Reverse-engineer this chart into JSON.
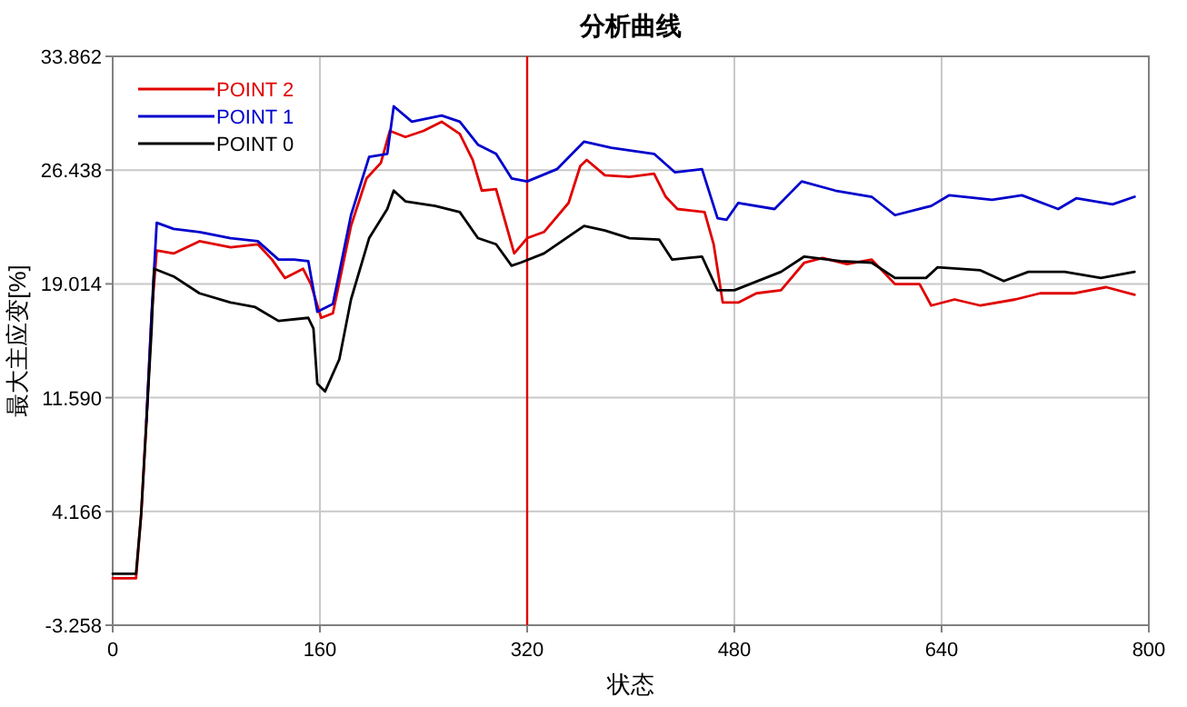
{
  "chart_data": {
    "type": "line",
    "title": "分析曲线",
    "xlabel": "状态",
    "ylabel": "最大主应变[%]",
    "xlim": [
      0,
      800
    ],
    "xticks": [
      0,
      160,
      320,
      480,
      640,
      800
    ],
    "ylim": [
      -3.258,
      33.862
    ],
    "yticks": [
      {
        "value": -3.258,
        "label": "-3.258"
      },
      4.166,
      {
        "value": 11.59,
        "label": "11.590"
      },
      19.014,
      26.438,
      33.862
    ],
    "grid": true,
    "legend": "top left",
    "ref_lines": [
      {
        "axis": "x",
        "value": 320,
        "color": "#e00000"
      }
    ],
    "series": [
      {
        "name": "POINT 2",
        "color": "#e00000",
        "x": [
          0,
          18,
          22,
          26,
          30,
          34,
          47,
          67,
          91,
          112,
          123,
          133,
          147,
          153,
          161,
          170,
          184,
          196,
          207,
          214,
          226,
          240,
          254,
          268,
          278,
          285,
          296,
          303,
          310,
          320,
          333,
          352,
          361,
          366,
          380,
          399,
          418,
          427,
          436,
          457,
          464,
          471,
          483,
          497,
          516,
          534,
          548,
          567,
          586,
          604,
          623,
          632,
          650,
          670,
          697,
          716,
          742,
          767,
          789
        ],
        "values": [
          -0.2,
          -0.2,
          4,
          10,
          17,
          21.2,
          21.0,
          21.8,
          21.4,
          21.6,
          20.6,
          19.4,
          20.0,
          19.0,
          16.8,
          17.1,
          22.8,
          25.9,
          26.9,
          29.0,
          28.6,
          29.0,
          29.6,
          28.8,
          27.1,
          25.1,
          25.2,
          23.1,
          21.0,
          22.0,
          22.4,
          24.3,
          26.7,
          27.1,
          26.1,
          26.0,
          26.2,
          24.7,
          23.9,
          23.7,
          21.6,
          17.8,
          17.8,
          18.4,
          18.6,
          20.4,
          20.7,
          20.3,
          20.6,
          19.0,
          19.0,
          17.6,
          18.0,
          17.6,
          18.0,
          18.4,
          18.4,
          18.8,
          18.3
        ]
      },
      {
        "name": "POINT 1",
        "color": "#0000cc",
        "x": [
          26,
          30,
          34,
          47,
          67,
          91,
          112,
          128,
          140,
          151,
          158,
          170,
          184,
          198,
          212,
          217,
          231,
          254,
          268,
          282,
          296,
          308,
          320,
          343,
          364,
          385,
          418,
          434,
          455,
          467,
          474,
          483,
          511,
          532,
          558,
          586,
          604,
          632,
          646,
          679,
          702,
          730,
          744,
          772,
          789
        ],
        "values": [
          10,
          17,
          23.0,
          22.6,
          22.4,
          22.0,
          21.8,
          20.6,
          20.6,
          20.5,
          17.2,
          17.7,
          23.5,
          27.3,
          27.5,
          30.6,
          29.6,
          30.0,
          29.6,
          28.1,
          27.5,
          25.9,
          25.7,
          26.5,
          28.3,
          27.9,
          27.5,
          26.3,
          26.5,
          23.3,
          23.2,
          24.3,
          23.9,
          25.7,
          25.1,
          24.7,
          23.5,
          24.1,
          24.8,
          24.5,
          24.8,
          23.9,
          24.6,
          24.2,
          24.7
        ]
      },
      {
        "name": "POINT 0",
        "color": "#000000",
        "x": [
          0,
          18,
          22,
          26,
          30,
          32,
          47,
          67,
          91,
          110,
          128,
          151,
          155,
          158,
          164,
          175,
          184,
          198,
          212,
          217,
          226,
          249,
          268,
          282,
          296,
          308,
          315,
          333,
          364,
          380,
          399,
          422,
          432,
          455,
          467,
          480,
          492,
          516,
          534,
          562,
          586,
          604,
          628,
          637,
          670,
          688,
          707,
          735,
          763,
          789
        ],
        "values": [
          0.1,
          0.1,
          4,
          10,
          16,
          20.0,
          19.5,
          18.4,
          17.8,
          17.5,
          16.6,
          16.8,
          16.1,
          12.5,
          12.0,
          14.1,
          18.0,
          22.0,
          23.9,
          25.1,
          24.4,
          24.1,
          23.7,
          22.0,
          21.6,
          20.2,
          20.4,
          21.0,
          22.8,
          22.5,
          22.0,
          21.9,
          20.6,
          20.8,
          18.6,
          18.6,
          19.0,
          19.8,
          20.8,
          20.5,
          20.4,
          19.4,
          19.4,
          20.1,
          19.9,
          19.2,
          19.8,
          19.8,
          19.4,
          19.8
        ]
      }
    ]
  }
}
